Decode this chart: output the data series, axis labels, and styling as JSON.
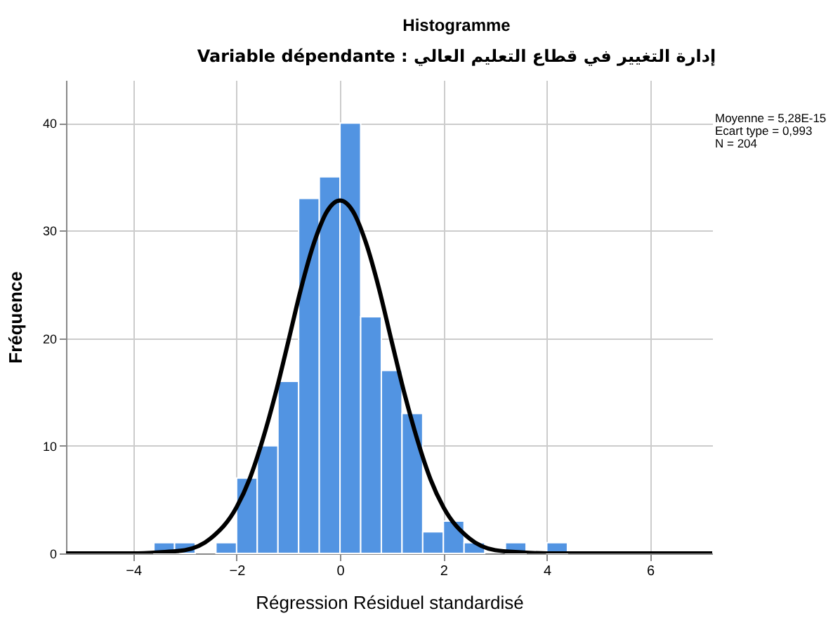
{
  "chart_data": {
    "type": "histogram",
    "title": "Histogramme",
    "subtitle": "Variable dépendante : إدارة التغيير في قطاع التعليم العالي",
    "xlabel": "Régression Résiduel standardisé",
    "ylabel": "Fréquence",
    "bins": [
      -3.6,
      -3.2,
      -2.8,
      -2.4,
      -2.0,
      -1.6,
      -1.2,
      -0.8,
      -0.4,
      0,
      0.4,
      0.8,
      1.2,
      1.6,
      2.0,
      2.4,
      2.8,
      3.2,
      3.6,
      4.0,
      4.4
    ],
    "series": [
      {
        "color": "#5294e2",
        "values": [
          1,
          1,
          0,
          1,
          7,
          10,
          16,
          33,
          35,
          40,
          22,
          17,
          13,
          2,
          3,
          1,
          0,
          1,
          0,
          1
        ]
      },
      {
        "type": "line",
        "color": "#000000",
        "x": [
          -5.3,
          -4.5,
          -4,
          -3.5,
          -3,
          -2.5,
          -2,
          -1.75,
          -1.5,
          -1.25,
          -1,
          -0.75,
          -0.5,
          -0.25,
          0,
          0.25,
          0.5,
          0.75,
          1,
          1.25,
          1.5,
          1.75,
          2,
          2.5,
          3,
          3.5,
          4,
          4.5,
          5.5,
          7.2
        ],
        "values": [
          0,
          0,
          0,
          0.1,
          0.3,
          1.4,
          4.3,
          6.9,
          10.5,
          14.8,
          19.7,
          24.7,
          28.9,
          31.8,
          32.8,
          31.8,
          28.9,
          24.7,
          19.7,
          14.8,
          10.5,
          6.9,
          4.3,
          1.4,
          0.3,
          0.1,
          0,
          0,
          0,
          0
        ]
      }
    ],
    "xlim": [
      -5.3,
      7.2
    ],
    "xticks": [
      -4,
      -2,
      0,
      2,
      4,
      6
    ],
    "ylim": [
      0,
      44
    ],
    "yticks": [
      0,
      10,
      20,
      30,
      40
    ],
    "grid": true,
    "annotations": [
      "Moyenne = 5,28E-15",
      "Ecart type = 0,993",
      "N = 204"
    ]
  }
}
